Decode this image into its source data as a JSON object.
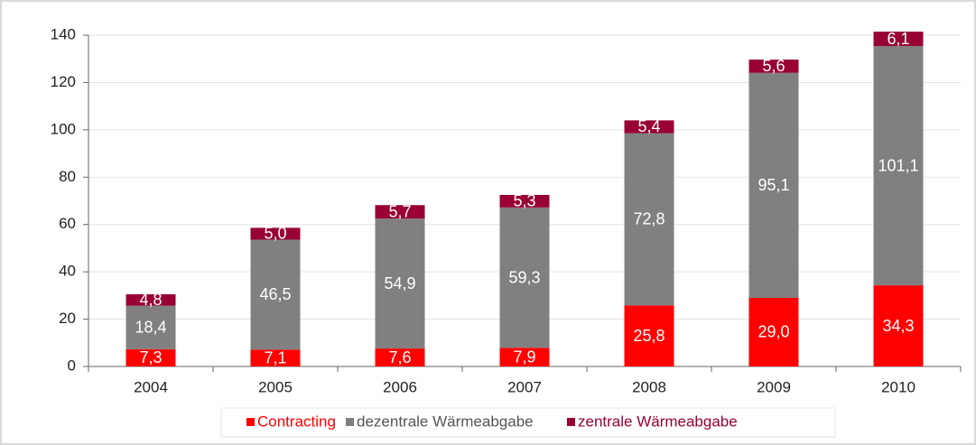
{
  "chart_data": {
    "type": "stacked_bar",
    "categories": [
      "2004",
      "2005",
      "2006",
      "2007",
      "2008",
      "2009",
      "2010"
    ],
    "series": [
      {
        "name": "Contracting",
        "color": "#ff0000",
        "values": [
          7.3,
          7.1,
          7.6,
          7.9,
          25.8,
          29.0,
          34.3
        ],
        "value_labels": [
          "7,3",
          "7,1",
          "7,6",
          "7,9",
          "25,8",
          "29,0",
          "34,3"
        ]
      },
      {
        "name": "dezentrale Wärmeabgabe",
        "color": "#808080",
        "values": [
          18.4,
          46.5,
          54.9,
          59.3,
          72.8,
          95.1,
          101.1
        ],
        "value_labels": [
          "18,4",
          "46,5",
          "54,9",
          "59,3",
          "72,8",
          "95,1",
          "101,1"
        ]
      },
      {
        "name": "zentrale Wärmeabgabe",
        "color": "#990033",
        "values": [
          4.8,
          5.0,
          5.7,
          5.3,
          5.4,
          5.6,
          6.1
        ],
        "value_labels": [
          "4,8",
          "5,0",
          "5,7",
          "5,3",
          "5,4",
          "5,6",
          "6,1"
        ]
      }
    ],
    "ylim": [
      0,
      140
    ],
    "yticks": [
      0,
      20,
      40,
      60,
      80,
      100,
      120,
      140
    ],
    "grid": true,
    "legend": "bottom"
  }
}
